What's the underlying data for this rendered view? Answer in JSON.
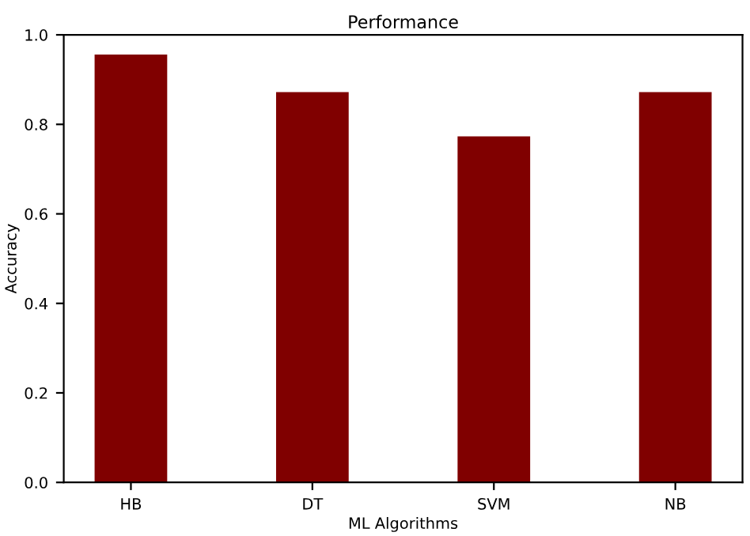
{
  "chart_data": {
    "type": "bar",
    "title": "Performance",
    "xlabel": "ML Algorithms",
    "ylabel": "Accuracy",
    "categories": [
      "HB",
      "DT",
      "SVM",
      "NB"
    ],
    "values": [
      0.956,
      0.872,
      0.773,
      0.872
    ],
    "color": "#800000",
    "ylim": [
      0,
      1.0
    ],
    "yticks": [
      {
        "value": 0,
        "label": "0.0"
      },
      0.2,
      0.4,
      0.6,
      0.8,
      {
        "value": 1.0,
        "label": "1.0"
      }
    ],
    "grid": false
  }
}
